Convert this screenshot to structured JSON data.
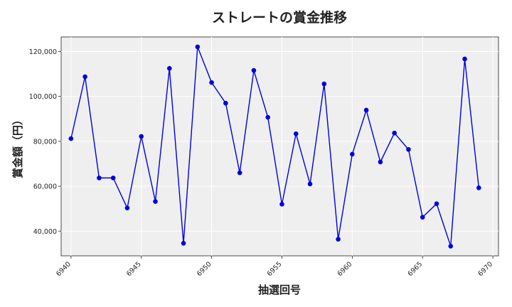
{
  "chart_data": {
    "type": "line",
    "title": "ストレートの賞金推移",
    "xlabel": "抽選回号",
    "ylabel": "賞金額（円）",
    "xlim": [
      6939.3,
      6970.4
    ],
    "ylim": [
      29000,
      126500
    ],
    "xticks": [
      6940,
      6945,
      6950,
      6955,
      6960,
      6965,
      6970
    ],
    "yticks": [
      40000,
      60000,
      80000,
      100000,
      120000
    ],
    "ytick_labels": [
      "40,000",
      "60,000",
      "80,000",
      "100,000",
      "120,000"
    ],
    "grid": true,
    "line_color": "#0000dd",
    "marker_color": "#0000dd",
    "background_color": "#efefef",
    "series": [
      {
        "x": [
          6940,
          6941,
          6942,
          6943,
          6944,
          6945,
          6946,
          6947,
          6948,
          6949,
          6950,
          6951,
          6952,
          6953,
          6954,
          6955,
          6956,
          6957,
          6958,
          6959,
          6960,
          6961,
          6962,
          6963,
          6964,
          6965,
          6966,
          6967,
          6968,
          6969
        ],
        "values": [
          81200,
          108800,
          63700,
          63700,
          50300,
          82200,
          53200,
          112500,
          34600,
          122100,
          106200,
          97000,
          66000,
          111600,
          90700,
          52000,
          83400,
          61000,
          105600,
          36400,
          74300,
          93900,
          70800,
          83700,
          76400,
          46200,
          52200,
          33300,
          116700,
          59300
        ]
      }
    ]
  }
}
